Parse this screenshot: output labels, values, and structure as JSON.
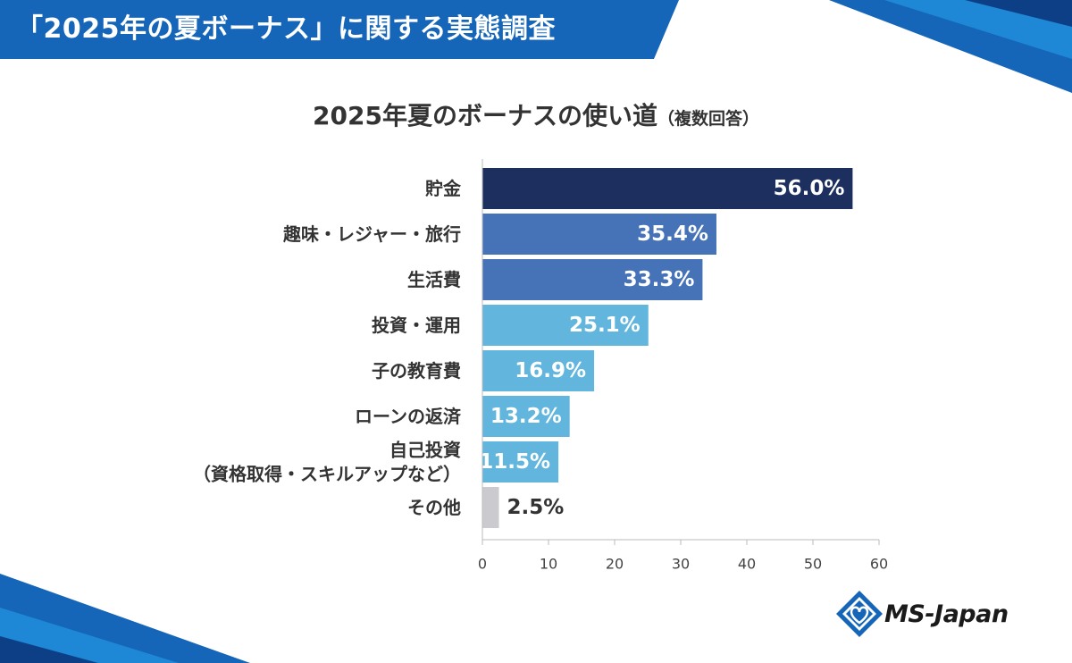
{
  "header": {
    "title": "「2025年の夏ボーナス」に関する実態調査"
  },
  "chart_data": {
    "type": "bar",
    "orientation": "horizontal",
    "title": "2025年夏のボーナスの使い道",
    "subtitle": "（複数回答）",
    "categories": [
      [
        "貯金"
      ],
      [
        "趣味・レジャー・旅行"
      ],
      [
        "生活費"
      ],
      [
        "投資・運用"
      ],
      [
        "子の教育費"
      ],
      [
        "ローンの返済"
      ],
      [
        "自己投資",
        "（資格取得・スキルアップなど）"
      ],
      [
        "その他"
      ]
    ],
    "values": [
      56.0,
      35.4,
      33.3,
      25.1,
      16.9,
      13.2,
      11.5,
      2.5
    ],
    "value_labels": [
      "56.0%",
      "35.4%",
      "33.3%",
      "25.1%",
      "16.9%",
      "13.2%",
      "11.5%",
      "2.5%"
    ],
    "bar_colors": [
      "#1c2f5e",
      "#4673b8",
      "#4673b8",
      "#62b6de",
      "#62b6de",
      "#62b6de",
      "#62b6de",
      "#cbcbcf"
    ],
    "xlim": [
      0,
      60
    ],
    "xticks": [
      "0",
      "10",
      "20",
      "30",
      "40",
      "50",
      "60"
    ],
    "xtick_values": [
      0,
      10,
      20,
      30,
      40,
      50,
      60
    ],
    "grid": false,
    "legend": "none"
  },
  "logo": {
    "text": "MS-Japan"
  },
  "colors": {
    "header_blue": "#1565b8",
    "navy": "#1c2f5e",
    "mid_blue": "#4673b8",
    "light_blue": "#62b6de",
    "gray": "#cbcbcf"
  }
}
